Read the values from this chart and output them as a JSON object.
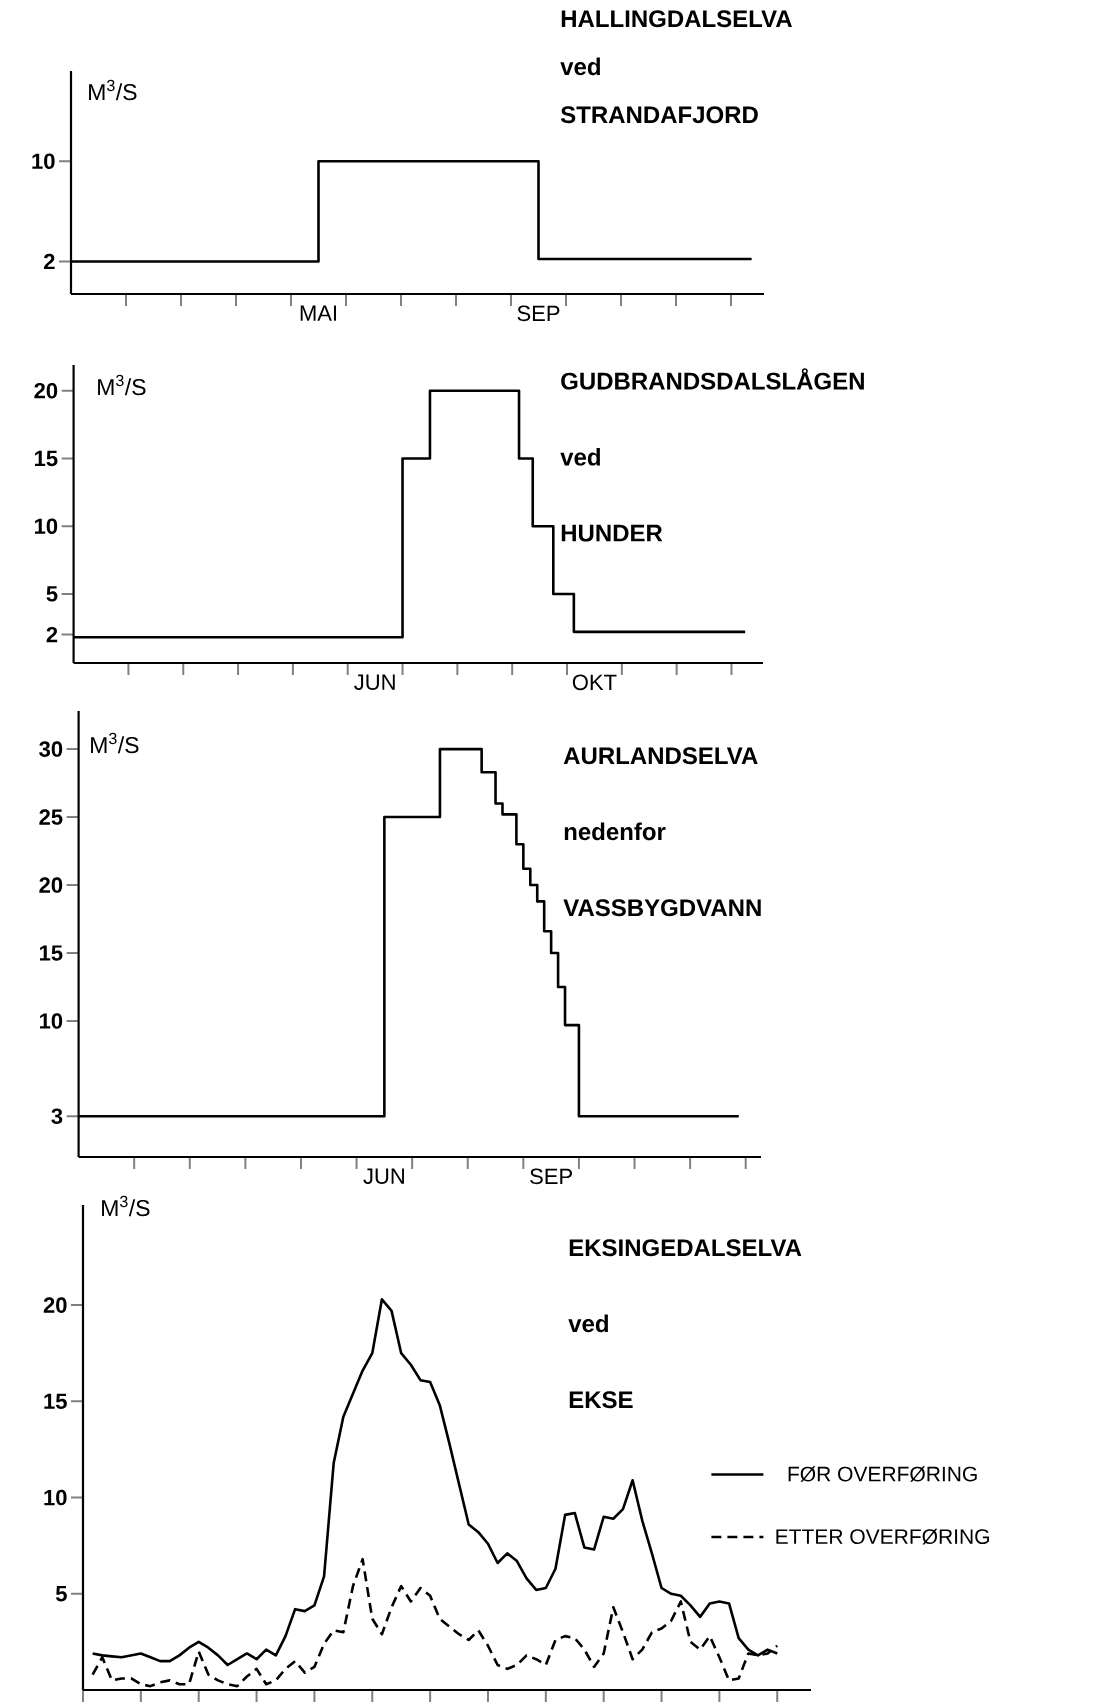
{
  "chart_data": [
    {
      "type": "step",
      "title": "HALLINGDALSELVA",
      "subtitle": "ved STRANDAFJORD",
      "ylabel": "M$^{3}$/S",
      "color": "#000000",
      "categories": [
        null,
        null,
        null,
        null,
        null,
        null,
        null,
        null,
        null,
        null,
        null,
        null,
        null,
        null,
        null,
        null,
        null,
        null,
        null,
        null,
        null,
        null,
        null,
        null,
        null,
        null,
        null,
        null,
        null,
        null,
        null,
        null,
        null,
        null,
        null,
        null,
        "MAI",
        null,
        null,
        null,
        null,
        null,
        null,
        null,
        null,
        null,
        null,
        null,
        null,
        null,
        null,
        null,
        null,
        null,
        null,
        null,
        null,
        null,
        null,
        null,
        null,
        null,
        null,
        null,
        null,
        null,
        null,
        null,
        "SEP",
        null,
        null,
        null,
        null,
        null,
        null,
        null,
        null,
        null,
        null,
        null,
        null,
        null,
        null,
        null,
        null,
        null,
        null,
        null,
        null,
        null,
        null,
        null,
        null,
        null,
        null,
        null,
        null,
        null,
        null,
        null
      ],
      "values": [
        2,
        2,
        2,
        2,
        2,
        2,
        2,
        2,
        2,
        2,
        2,
        2,
        2,
        2,
        2,
        2,
        2,
        2,
        2,
        2,
        2,
        2,
        2,
        2,
        2,
        2,
        2,
        2,
        2,
        2,
        2,
        2,
        2,
        2,
        2,
        2,
        10,
        10,
        10,
        10,
        10,
        10,
        10,
        10,
        10,
        10,
        10,
        10,
        10,
        10,
        10,
        10,
        10,
        10,
        10,
        10,
        10,
        10,
        10,
        10,
        10,
        10,
        10,
        10,
        10,
        10,
        10,
        10,
        2.2,
        2.2,
        2.2,
        2.2,
        2.2,
        2.2,
        2.2,
        2.2,
        2.2,
        2.2,
        2.2,
        2.2,
        2.2,
        2.2,
        2.2,
        2.2,
        2.2,
        2.2,
        2.2,
        2.2,
        2.2,
        2.2,
        2.2,
        2.2,
        2.2,
        2.2,
        2.2,
        2.2,
        2.2,
        2.2,
        2.2,
        2.2
      ],
      "ylim": [
        -0.6,
        17.2
      ],
      "yticks": [
        2,
        10
      ]
    },
    {
      "type": "step",
      "title": "GUDBRANDSDALSLÅGEN",
      "subtitle": "ved HUNDER",
      "ylabel": "M$^{3}$/S",
      "color": "#000000",
      "categories": [
        null,
        null,
        null,
        null,
        null,
        null,
        null,
        null,
        null,
        null,
        null,
        null,
        null,
        null,
        null,
        null,
        null,
        null,
        null,
        null,
        null,
        null,
        null,
        null,
        null,
        null,
        null,
        null,
        null,
        null,
        null,
        null,
        null,
        null,
        null,
        null,
        null,
        null,
        null,
        null,
        null,
        null,
        null,
        null,
        "JUN",
        null,
        null,
        null,
        null,
        null,
        null,
        null,
        null,
        null,
        null,
        null,
        null,
        null,
        null,
        null,
        null,
        null,
        null,
        null,
        null,
        null,
        null,
        null,
        null,
        null,
        null,
        null,
        null,
        null,
        null,
        null,
        "OKT",
        null,
        null,
        null,
        null,
        null,
        null,
        null,
        null,
        null,
        null,
        null,
        null,
        null,
        null,
        null,
        null,
        null,
        null,
        null,
        null,
        null,
        null
      ],
      "values": [
        1.8,
        1.8,
        1.8,
        1.8,
        1.8,
        1.8,
        1.8,
        1.8,
        1.8,
        1.8,
        1.8,
        1.8,
        1.8,
        1.8,
        1.8,
        1.8,
        1.8,
        1.8,
        1.8,
        1.8,
        1.8,
        1.8,
        1.8,
        1.8,
        1.8,
        1.8,
        1.8,
        1.8,
        1.8,
        1.8,
        1.8,
        1.8,
        1.8,
        1.8,
        1.8,
        1.8,
        1.8,
        1.8,
        1.8,
        1.8,
        1.8,
        1.8,
        1.8,
        1.8,
        1.8,
        1.8,
        1.8,
        1.8,
        15,
        15,
        15,
        15,
        20,
        20,
        20,
        20,
        20,
        20,
        20,
        20,
        20,
        20,
        20,
        20,
        20,
        15,
        15,
        10,
        10,
        10,
        5,
        5,
        5,
        2.2,
        2.2,
        2.2,
        2.2,
        2.2,
        2.2,
        2.2,
        2.2,
        2.2,
        2.2,
        2.2,
        2.2,
        2.2,
        2.2,
        2.2,
        2.2,
        2.2,
        2.2,
        2.2,
        2.2,
        2.2,
        2.2,
        2.2,
        2.2,
        2.2,
        2.2
      ],
      "ylim": [
        -0.1,
        21.9
      ],
      "yticks": [
        2,
        5,
        10,
        15,
        20
      ]
    },
    {
      "type": "step",
      "title": "AURLANDSELVA",
      "subtitle": "nedenfor VASSBYGDVANN",
      "ylabel": "M$^{3}$/S",
      "color": "#000000",
      "categories": [
        null,
        null,
        null,
        null,
        null,
        null,
        null,
        null,
        null,
        null,
        null,
        null,
        null,
        null,
        null,
        null,
        null,
        null,
        null,
        null,
        null,
        null,
        null,
        null,
        null,
        null,
        null,
        null,
        null,
        null,
        null,
        null,
        null,
        null,
        null,
        null,
        null,
        null,
        null,
        null,
        null,
        null,
        null,
        null,
        "JUN",
        null,
        null,
        null,
        null,
        null,
        null,
        null,
        null,
        null,
        null,
        null,
        null,
        null,
        null,
        null,
        null,
        null,
        null,
        null,
        null,
        null,
        null,
        null,
        "SEP",
        null,
        null,
        null,
        null,
        null,
        null,
        null,
        null,
        null,
        null,
        null,
        null,
        null,
        null,
        null,
        null,
        null,
        null,
        null,
        null,
        null,
        null,
        null,
        null,
        null,
        null,
        null
      ],
      "values": [
        3,
        3,
        3,
        3,
        3,
        3,
        3,
        3,
        3,
        3,
        3,
        3,
        3,
        3,
        3,
        3,
        3,
        3,
        3,
        3,
        3,
        3,
        3,
        3,
        3,
        3,
        3,
        3,
        3,
        3,
        3,
        3,
        3,
        3,
        3,
        3,
        3,
        3,
        3,
        3,
        3,
        3,
        3,
        3,
        25,
        25,
        25,
        25,
        25,
        25,
        25,
        25,
        30,
        30,
        30,
        30,
        30,
        30,
        28.3,
        28.3,
        26,
        25.2,
        25.2,
        23,
        21.2,
        20,
        18.8,
        16.6,
        15,
        12.5,
        9.7,
        9.7,
        3,
        3,
        3,
        3,
        3,
        3,
        3,
        3,
        3,
        3,
        3,
        3,
        3,
        3,
        3,
        3,
        3,
        3,
        3,
        3,
        3,
        3,
        3,
        3
      ],
      "ylim": [
        0,
        32.8
      ],
      "yticks": [
        3,
        10,
        15,
        20,
        25,
        30
      ]
    },
    {
      "type": "line",
      "title": "EKSINGEDALSELVA",
      "subtitle": "ved EKSE",
      "ylabel": "M$^{3}$/S",
      "legend": "right",
      "ylim": [
        0,
        25.2
      ],
      "yticks": [
        5,
        10,
        15,
        20
      ],
      "categories": [
        null,
        null,
        null,
        null,
        null,
        null,
        null,
        null,
        null,
        null,
        null,
        null,
        null,
        null,
        null,
        null,
        null,
        null,
        null,
        null,
        null,
        null,
        null,
        null,
        null,
        null,
        null,
        null,
        null,
        null,
        null,
        null,
        null,
        null,
        null,
        null,
        null,
        null,
        null,
        null,
        null,
        null,
        null,
        null,
        null,
        null,
        null,
        null,
        null,
        null,
        null,
        null,
        null,
        null,
        null,
        null,
        null,
        null,
        null,
        null,
        null,
        null,
        null,
        null,
        null,
        null,
        null,
        null,
        null,
        null,
        null,
        null,
        null
      ],
      "series": [
        {
          "name": "FØR OVERFØRING",
          "color": "#000000",
          "line_style": "solid",
          "values": [
            null,
            1.9,
            1.8,
            1.75,
            1.7,
            1.8,
            1.9,
            1.7,
            1.5,
            1.5,
            1.8,
            2.2,
            2.5,
            2.2,
            1.8,
            1.3,
            1.6,
            1.9,
            1.6,
            2.1,
            1.8,
            2.8,
            4.2,
            4.1,
            4.4,
            5.9,
            11.8,
            14.2,
            15.4,
            16.6,
            17.5,
            20.3,
            19.7,
            17.5,
            16.9,
            16.1,
            16.0,
            14.8,
            12.8,
            10.7,
            8.6,
            8.2,
            7.6,
            6.6,
            7.1,
            6.7,
            5.8,
            5.2,
            5.3,
            6.3,
            9.1,
            9.2,
            7.4,
            7.3,
            9.0,
            8.9,
            9.4,
            10.9,
            8.8,
            7.1,
            5.3,
            5.0,
            4.9,
            4.4,
            3.8,
            4.5,
            4.6,
            4.5,
            2.7,
            2.1,
            1.8,
            2.1,
            1.9
          ]
        },
        {
          "name": "ETTER OVERFØRING",
          "color": "#000000",
          "line_style": "dashed",
          "values": [
            null,
            0.8,
            1.7,
            0.5,
            0.6,
            0.6,
            0.3,
            0.2,
            0.4,
            0.5,
            0.3,
            0.3,
            2.0,
            0.8,
            0.5,
            0.3,
            0.2,
            0.7,
            1.1,
            0.3,
            0.5,
            1.1,
            1.5,
            0.9,
            1.2,
            2.4,
            3.1,
            3.0,
            5.4,
            6.8,
            3.7,
            2.9,
            4.3,
            5.4,
            4.6,
            5.3,
            4.9,
            3.7,
            3.3,
            2.9,
            2.6,
            3.1,
            2.3,
            1.3,
            1.1,
            1.3,
            1.8,
            1.6,
            1.3,
            2.6,
            2.8,
            2.7,
            2.1,
            1.2,
            1.9,
            4.3,
            3.0,
            1.6,
            2.1,
            3.0,
            3.2,
            3.6,
            4.6,
            2.5,
            2.1,
            2.8,
            1.7,
            0.5,
            0.6,
            1.9,
            1.8,
            1.9,
            2.3
          ]
        }
      ]
    }
  ]
}
